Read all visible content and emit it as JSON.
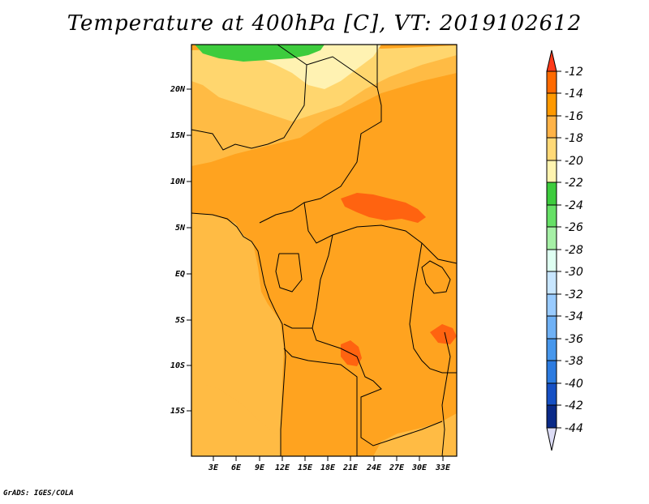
{
  "title": "Temperature at 400hPa [C], VT: 2019102612",
  "credit": "GrADS: IGES/COLA",
  "map": {
    "y_ticks": [
      "20N",
      "15N",
      "10N",
      "5N",
      "EQ",
      "5S",
      "10S",
      "15S"
    ],
    "x_ticks": [
      "3E",
      "6E",
      "9E",
      "12E",
      "15E",
      "18E",
      "21E",
      "24E",
      "27E",
      "30E",
      "33E"
    ]
  },
  "colorbar": {
    "labels": [
      "-12",
      "-14",
      "-16",
      "-18",
      "-20",
      "-22",
      "-24",
      "-26",
      "-28",
      "-30",
      "-32",
      "-34",
      "-36",
      "-38",
      "-40",
      "-42",
      "-44"
    ],
    "colors": [
      "#ff3a1a",
      "#ff6a00",
      "#ff9900",
      "#ffb347",
      "#ffd977",
      "#fff4b0",
      "#3dcc3d",
      "#66e066",
      "#a6f0a6",
      "#dffff2",
      "#c8e6ff",
      "#99cbff",
      "#6fb1f5",
      "#4797ec",
      "#2c7be0",
      "#1650c4",
      "#0a2a88",
      "#dcdcf5"
    ]
  },
  "palette": {
    "base_orange": "#ffa31f",
    "light_orange": "#ffbb44",
    "dark_orange": "#ff9410",
    "red_orange": "#ff6310",
    "yellow": "#ffd66e",
    "pale_yellow": "#fff2b2",
    "green": "#3dcc3d"
  }
}
